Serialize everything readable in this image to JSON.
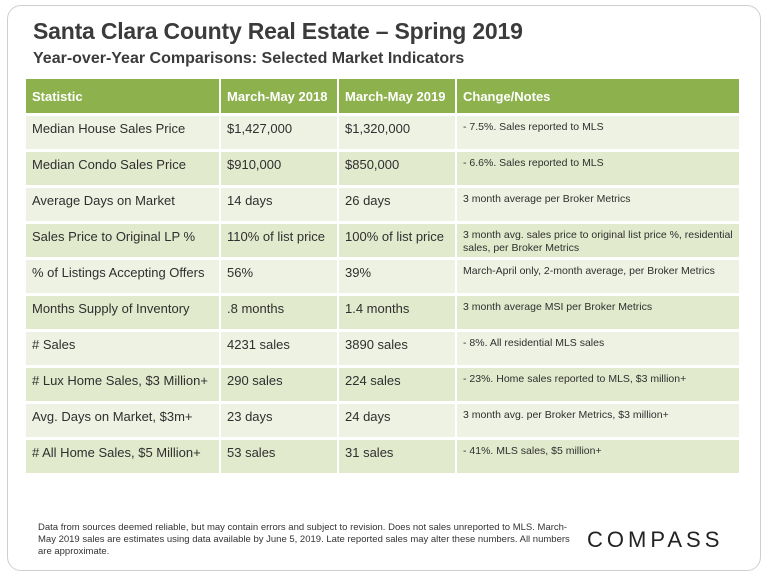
{
  "title": "Santa Clara County Real Estate – Spring 2019",
  "subtitle": "Year-over-Year Comparisons: Selected Market Indicators",
  "table": {
    "headers": [
      "Statistic",
      "March-May  2018",
      "March-May  2019",
      "Change/Notes"
    ],
    "rows": [
      {
        "statistic": "Median House Sales Price",
        "y2018": "$1,427,000",
        "y2019": "$1,320,000",
        "notes": "- 7.5%.  Sales reported to MLS"
      },
      {
        "statistic": "Median Condo Sales Price",
        "y2018": "$910,000",
        "y2019": "$850,000",
        "notes": "- 6.6%.  Sales reported to MLS"
      },
      {
        "statistic": "Average Days on Market",
        "y2018": "14 days",
        "y2019": "26 days",
        "notes": "3 month average per Broker Metrics"
      },
      {
        "statistic": "Sales Price to Original LP %",
        "y2018": "110% of list price",
        "y2019": "100% of list price",
        "notes": "3 month avg. sales price to original list price %, residential sales, per Broker Metrics"
      },
      {
        "statistic": "% of Listings Accepting Offers",
        "y2018": "56%",
        "y2019": "39%",
        "notes": "March-April only, 2-month average, per Broker Metrics"
      },
      {
        "statistic": "Months Supply of Inventory",
        "y2018": ".8 months",
        "y2019": "1.4 months",
        "notes": "3 month average MSI per Broker Metrics"
      },
      {
        "statistic": "# Sales",
        "y2018": "4231 sales",
        "y2019": "3890 sales",
        "notes": "- 8%.  All residential MLS sales"
      },
      {
        "statistic": "# Lux Home Sales, $3 Million+",
        "y2018": "290 sales",
        "y2019": "224 sales",
        "notes": "- 23%.  Home sales reported to MLS, $3 million+"
      },
      {
        "statistic": "Avg. Days on Market, $3m+",
        "y2018": "23 days",
        "y2019": "24 days",
        "notes": "3 month avg. per Broker Metrics, $3 million+"
      },
      {
        "statistic": "# All Home Sales, $5 Million+",
        "y2018": "53 sales",
        "y2019": "31 sales",
        "notes": "- 41%.  MLS sales, $5 million+"
      }
    ]
  },
  "footnote": "Data from sources deemed reliable, but may contain errors and subject to revision. Does not sales unreported to MLS. March-May 2019 sales are estimates using data available by June 5, 2019. Late reported sales may alter these numbers. All numbers are approximate.",
  "logo": "COMPASS",
  "colors": {
    "header_green": "#8db14d",
    "row_light": "#eef2e3",
    "row_dark": "#e2eacd"
  }
}
